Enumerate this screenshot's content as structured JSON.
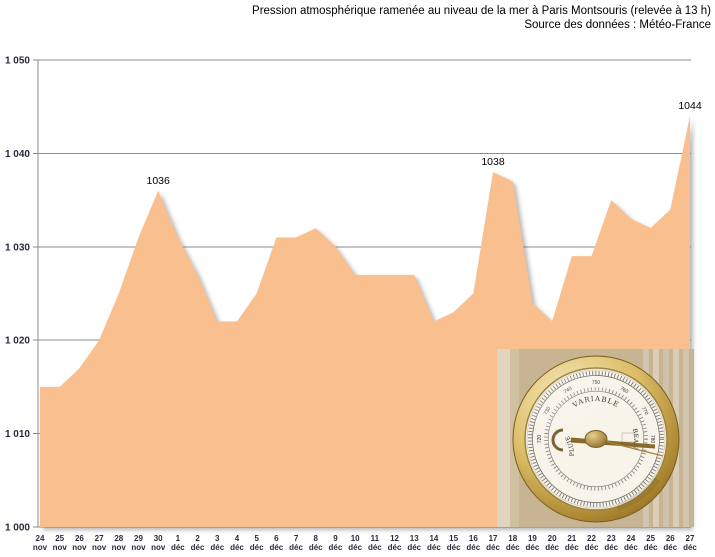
{
  "title": {
    "line1": "Pression atmosphérique ramenée au niveau de la mer à Paris Montsouris (relevée à 13 h)",
    "line2": "Source des données : Météo-France"
  },
  "chart_data": {
    "type": "area",
    "title": "Pression atmosphérique ramenée au niveau de la mer à Paris Montsouris (relevée à 13 h)",
    "subtitle": "Source des données : Météo-France",
    "xlabel": "",
    "ylabel": "",
    "ylim": [
      1000,
      1050
    ],
    "ytick_step": 10,
    "ytick_labels": [
      "1 000",
      "1 010",
      "1 020",
      "1 030",
      "1 040",
      "1 050"
    ],
    "grid": true,
    "legend": "none",
    "fill_color": "#FABF8F",
    "x": [
      "24 nov",
      "25 nov",
      "26 nov",
      "27 nov",
      "28 nov",
      "29 nov",
      "30 nov",
      "1 déc",
      "2 déc",
      "3 déc",
      "4 déc",
      "5 déc",
      "6 déc",
      "7 déc",
      "8 déc",
      "9 déc",
      "10 déc",
      "11 déc",
      "12 déc",
      "13 déc",
      "14 déc",
      "15 déc",
      "16 déc",
      "17 déc",
      "18 déc",
      "19 déc",
      "20 déc",
      "21 déc",
      "22 déc",
      "23 déc",
      "24 déc",
      "25 déc",
      "26 déc",
      "27 déc"
    ],
    "values": [
      1015,
      1015,
      1017,
      1020,
      1025,
      1031,
      1036,
      1031,
      1027,
      1022,
      1022,
      1025,
      1031,
      1031,
      1032,
      1030,
      1027,
      1027,
      1027,
      1027,
      1022,
      1023,
      1025,
      1038,
      1037,
      1024,
      1022,
      1029,
      1029,
      1035,
      1033,
      1032,
      1034,
      1044
    ],
    "labeled_points": [
      {
        "x": "30 nov",
        "value": 1036
      },
      {
        "x": "17 déc",
        "value": 1038
      },
      {
        "x": "27 déc",
        "value": 1044
      }
    ]
  },
  "inset": {
    "description": "barometer-photo",
    "dial": {
      "top": "VARIABLE",
      "left": "PLUIE",
      "right": "BEAU"
    },
    "scale_numbers": [
      "720",
      "730",
      "740",
      "750",
      "760",
      "770",
      "780"
    ]
  }
}
